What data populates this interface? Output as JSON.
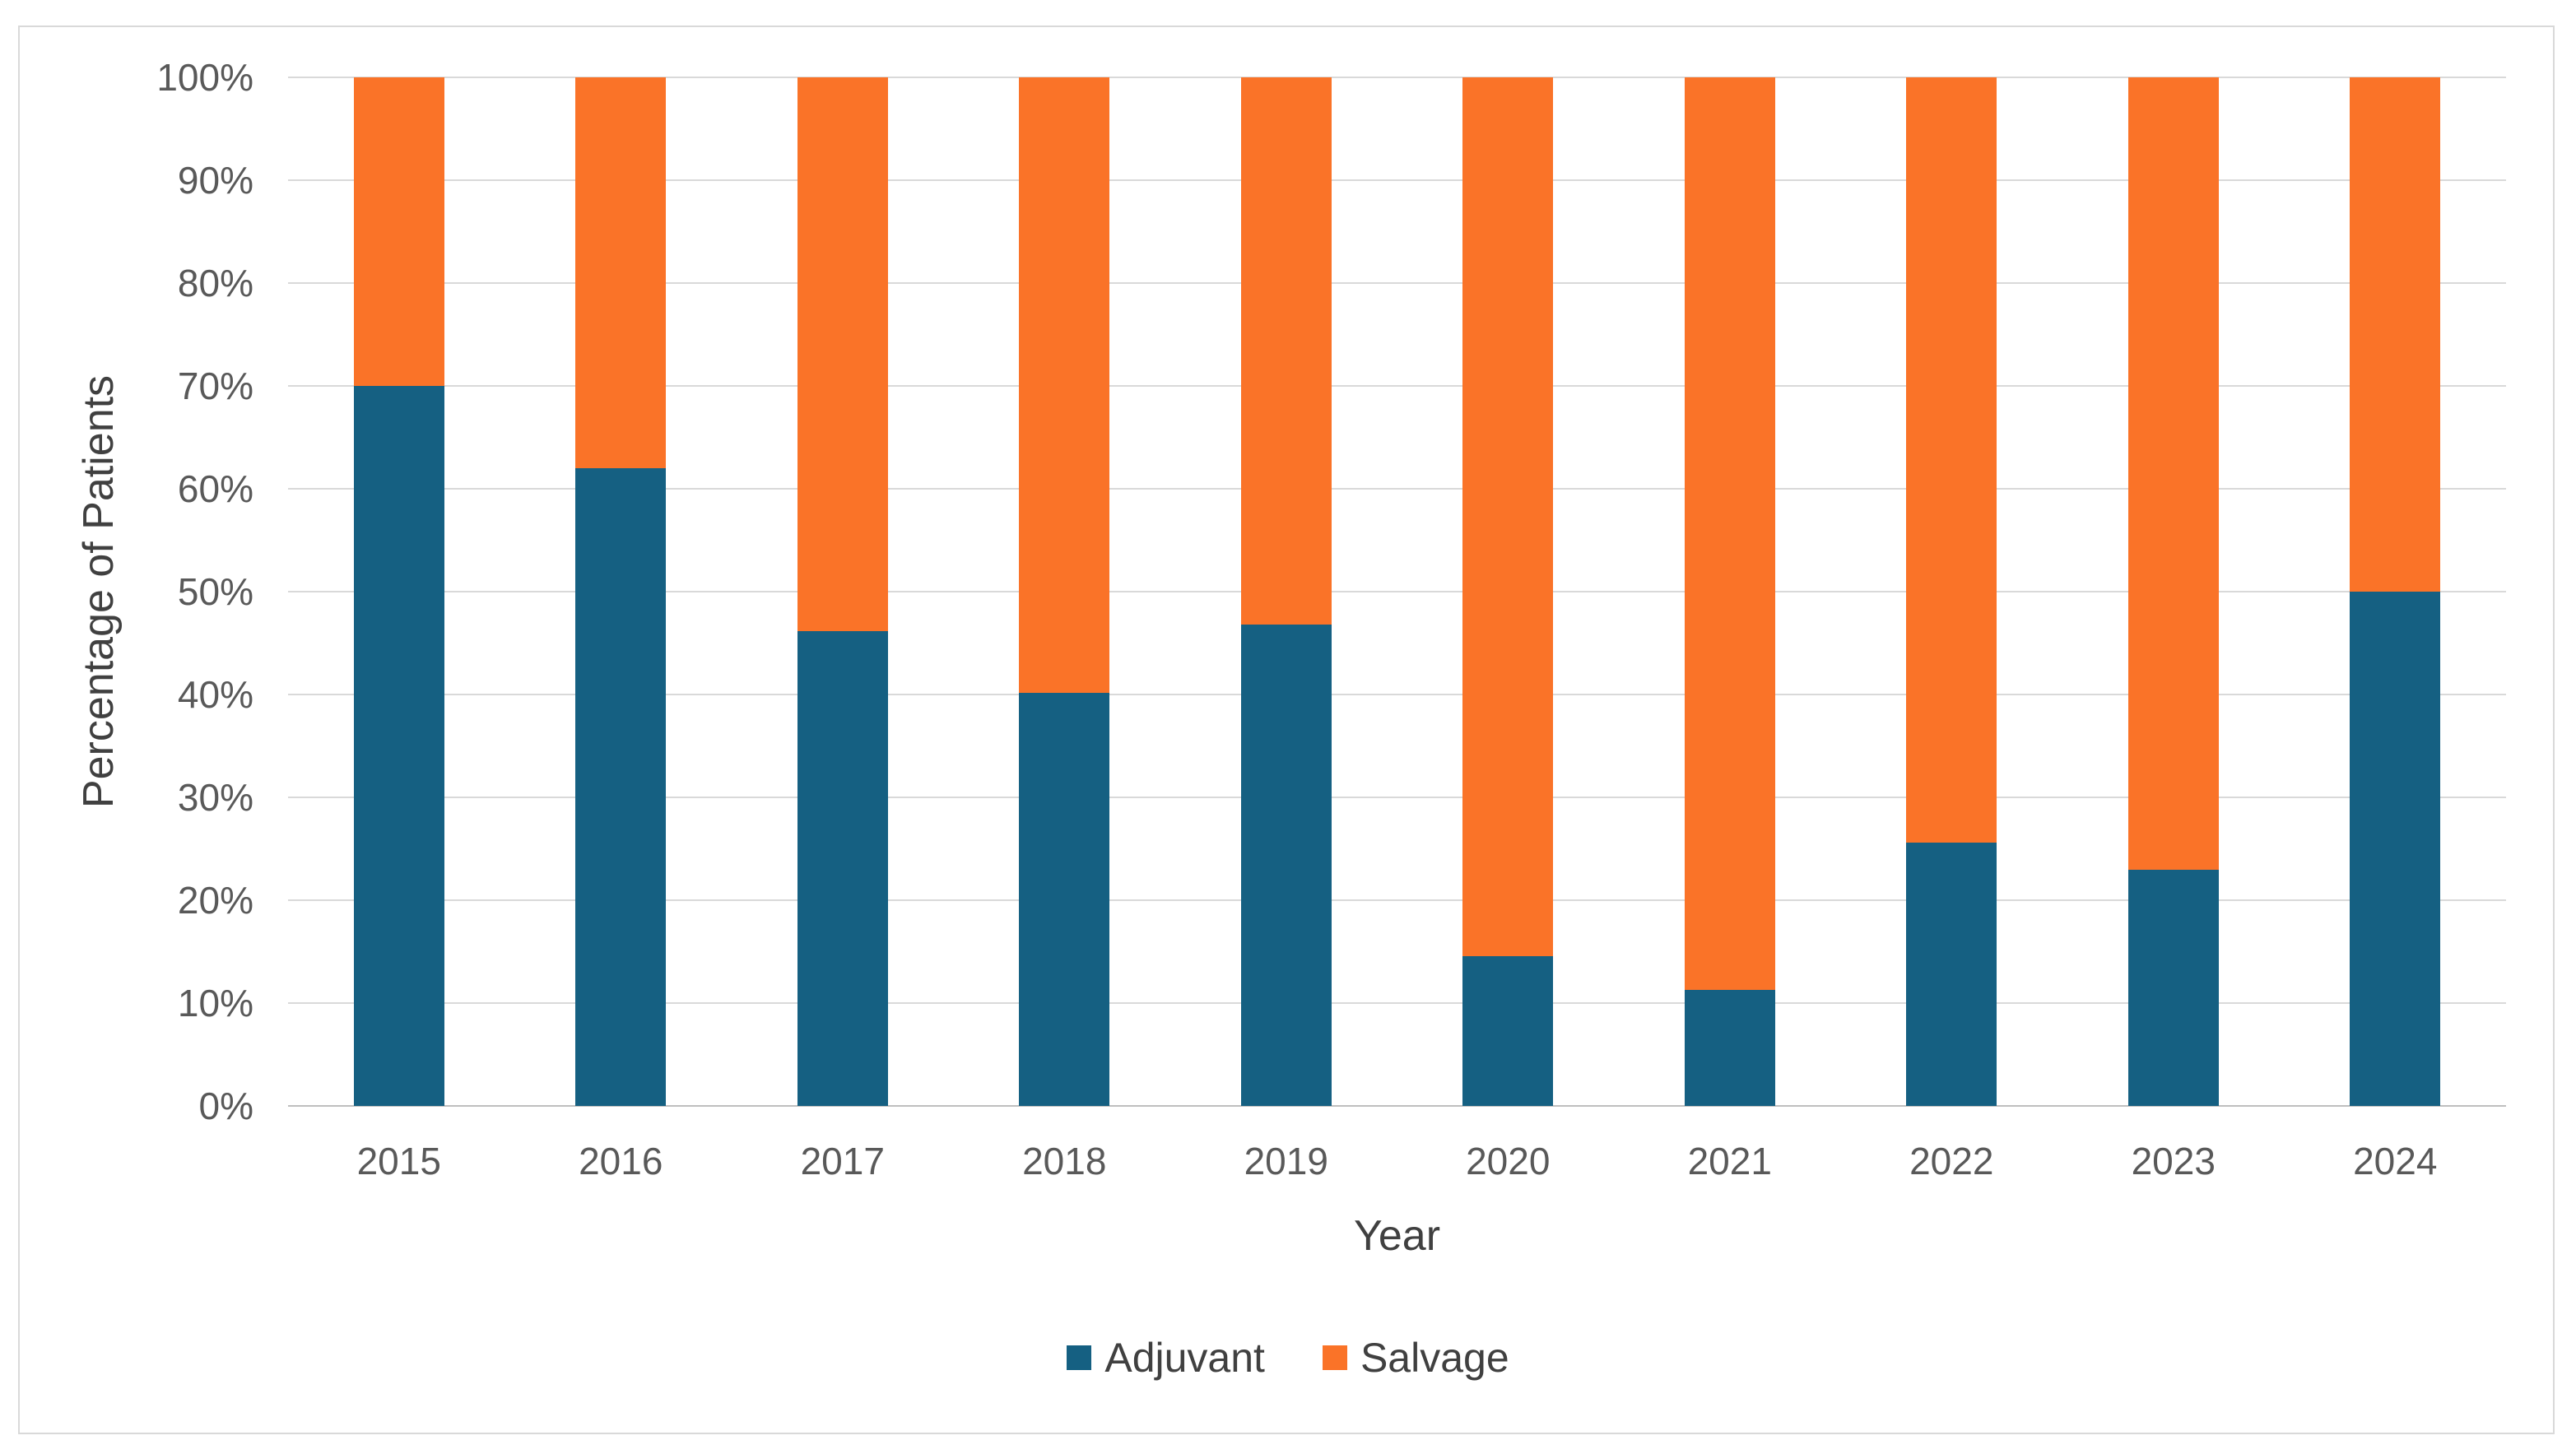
{
  "chart_data": {
    "type": "bar",
    "subtype": "stacked-100-percent-column",
    "title": "",
    "xlabel": "Year",
    "ylabel": "Percentage of Patients",
    "categories": [
      "2015",
      "2016",
      "2017",
      "2018",
      "2019",
      "2020",
      "2021",
      "2022",
      "2023",
      "2024"
    ],
    "series": [
      {
        "name": "Adjuvant",
        "color": "#156082",
        "values": [
          70,
          62,
          46.2,
          40.2,
          46.8,
          14.6,
          11.3,
          25.6,
          23,
          50
        ]
      },
      {
        "name": "Salvage",
        "color": "#FA7328",
        "values": [
          30,
          38,
          53.8,
          59.8,
          53.2,
          85.4,
          88.7,
          74.4,
          77,
          50
        ]
      }
    ],
    "ylim": [
      0,
      100
    ],
    "ytick_step": 10,
    "ytick_labels": [
      "0%",
      "10%",
      "20%",
      "30%",
      "40%",
      "50%",
      "60%",
      "70%",
      "80%",
      "90%",
      "100%"
    ],
    "grid": true,
    "legend_position": "bottom"
  },
  "colors": {
    "gridline": "#d9d9d9",
    "axis_line": "#bfbfbf",
    "tick_text": "#595959",
    "title_text": "#404040",
    "chart_border": "#d9d9d9",
    "background": "#ffffff"
  }
}
